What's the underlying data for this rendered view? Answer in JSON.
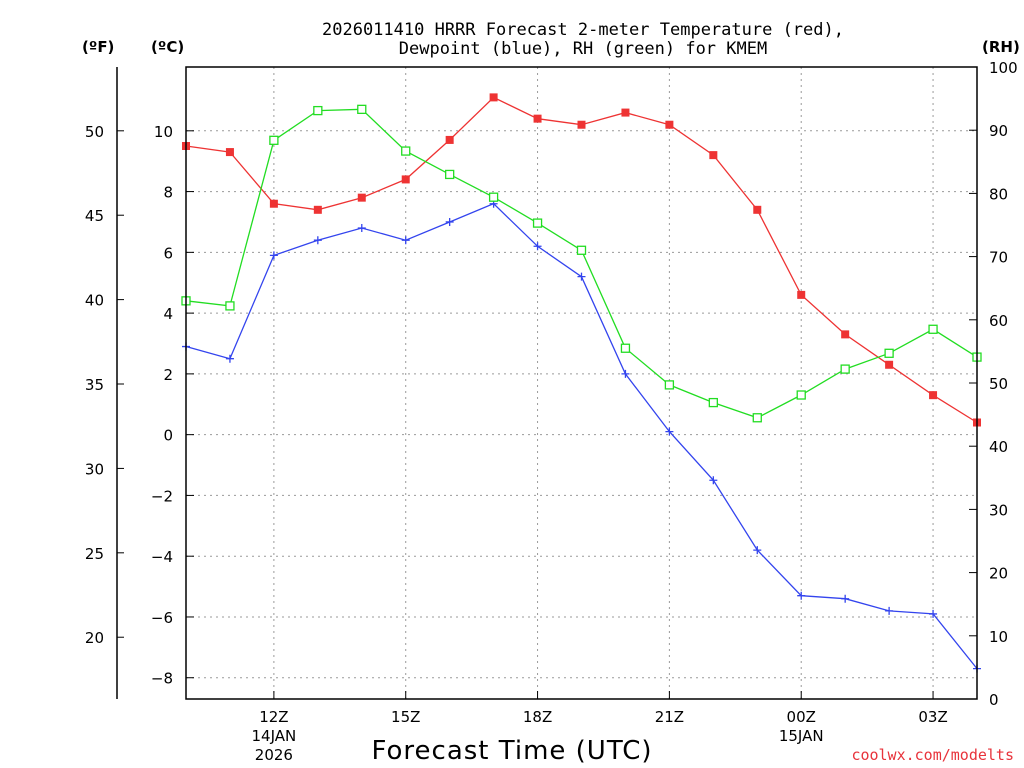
{
  "chart_data": {
    "type": "line",
    "title_line1": "2026011410 HRRR Forecast 2-meter Temperature (red),",
    "title_line2": "Dewpoint (blue), RH (green) for KMEM",
    "unit_left_f": "(ºF)",
    "unit_left_c": "(ºC)",
    "unit_right": "(RH)",
    "xlabel": "Forecast Time (UTC)",
    "credit": "coolwx.com/modelts",
    "x_hours": [
      10,
      11,
      12,
      13,
      14,
      15,
      16,
      17,
      18,
      19,
      20,
      21,
      22,
      23,
      24,
      25,
      26,
      27,
      28
    ],
    "xlim": [
      10,
      28
    ],
    "x_ticks": [
      {
        "hour": 12,
        "label": "12Z",
        "sub1": "14JAN",
        "sub2": "2026"
      },
      {
        "hour": 15,
        "label": "15Z",
        "sub1": "",
        "sub2": ""
      },
      {
        "hour": 18,
        "label": "18Z",
        "sub1": "",
        "sub2": ""
      },
      {
        "hour": 21,
        "label": "21Z",
        "sub1": "",
        "sub2": ""
      },
      {
        "hour": 24,
        "label": "00Z",
        "sub1": "15JAN",
        "sub2": ""
      },
      {
        "hour": 27,
        "label": "03Z",
        "sub1": "",
        "sub2": ""
      }
    ],
    "ylim_c": [
      -8.7,
      12.1
    ],
    "y_ticks_c": [
      -8,
      -6,
      -4,
      -2,
      0,
      2,
      4,
      6,
      8,
      10
    ],
    "y_tick_labels_c": [
      "−8",
      "−6",
      "−4",
      "−2",
      "0",
      "2",
      "4",
      "6",
      "8",
      "10"
    ],
    "y_ticks_f": [
      20,
      25,
      30,
      35,
      40,
      45,
      50
    ],
    "y_tick_labels_f": [
      "20",
      "25",
      "30",
      "35",
      "40",
      "45",
      "50"
    ],
    "ylim_rh": [
      0,
      100
    ],
    "y_ticks_rh": [
      0,
      10,
      20,
      30,
      40,
      50,
      60,
      70,
      80,
      90,
      100
    ],
    "y_tick_labels_rh": [
      "0",
      "10",
      "20",
      "30",
      "40",
      "50",
      "60",
      "70",
      "80",
      "90",
      "100"
    ],
    "series": [
      {
        "name": "2-meter Temperature",
        "unit": "C",
        "axis": "c",
        "color": "#ee3333",
        "marker": "filled-square",
        "values": [
          9.5,
          9.3,
          7.6,
          7.4,
          7.8,
          8.4,
          9.7,
          11.1,
          10.4,
          10.2,
          10.6,
          10.2,
          9.2,
          7.4,
          4.6,
          3.3,
          2.3,
          1.3,
          0.4
        ]
      },
      {
        "name": "Dewpoint",
        "unit": "C",
        "axis": "c",
        "color": "#3344ee",
        "marker": "plus",
        "values": [
          2.9,
          2.5,
          5.9,
          6.4,
          6.8,
          6.4,
          7.0,
          7.6,
          6.2,
          5.2,
          2.0,
          0.1,
          -1.5,
          -3.8,
          -5.3,
          -5.4,
          -5.8,
          -5.9,
          -7.7
        ]
      },
      {
        "name": "RH",
        "unit": "%",
        "axis": "rh",
        "color": "#22dd22",
        "marker": "hollow-square",
        "values": [
          63,
          62.2,
          88.4,
          93.1,
          93.3,
          86.7,
          83.0,
          79.4,
          75.3,
          71.0,
          55.5,
          49.7,
          46.9,
          44.5,
          48.1,
          52.2,
          54.7,
          58.5,
          54.1
        ]
      }
    ]
  }
}
